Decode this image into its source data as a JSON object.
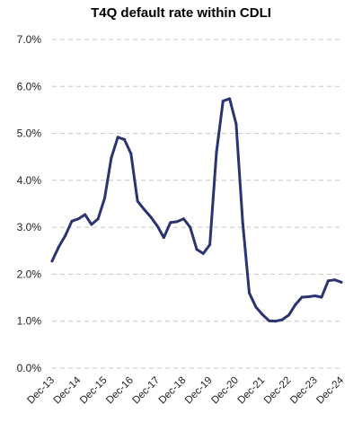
{
  "chart_data": {
    "type": "line",
    "title": "T4Q default rate within CDLI",
    "xlabel": "",
    "ylabel": "",
    "ylim": [
      0,
      7
    ],
    "y_ticks": [
      "0.0%",
      "1.0%",
      "2.0%",
      "3.0%",
      "4.0%",
      "5.0%",
      "6.0%",
      "7.0%"
    ],
    "x_tick_labels": [
      "Dec-13",
      "Dec-14",
      "Dec-15",
      "Dec-16",
      "Dec-17",
      "Dec-18",
      "Dec-19",
      "Dec-20",
      "Dec-21",
      "Dec-22",
      "Dec-23",
      "Dec-24"
    ],
    "grid": "horizontal-dashed",
    "legend": "none",
    "series": [
      {
        "color": "#2b3470",
        "x": [
          "Dec-13",
          "Mar-14",
          "Jun-14",
          "Sep-14",
          "Dec-14",
          "Mar-15",
          "Jun-15",
          "Sep-15",
          "Dec-15",
          "Mar-16",
          "Jun-16",
          "Sep-16",
          "Dec-16",
          "Mar-17",
          "Jun-17",
          "Sep-17",
          "Dec-17",
          "Mar-18",
          "Jun-18",
          "Sep-18",
          "Dec-18",
          "Mar-19",
          "Jun-19",
          "Sep-19",
          "Dec-19",
          "Mar-20",
          "Jun-20",
          "Sep-20",
          "Dec-20",
          "Mar-21",
          "Jun-21",
          "Sep-21",
          "Dec-21",
          "Mar-22",
          "Jun-22",
          "Sep-22",
          "Dec-22",
          "Mar-23",
          "Jun-23",
          "Sep-23",
          "Dec-23",
          "Mar-24",
          "Jun-24",
          "Sep-24",
          "Dec-24"
        ],
        "values": [
          2.28,
          2.58,
          2.82,
          3.13,
          3.18,
          3.27,
          3.06,
          3.18,
          3.62,
          4.48,
          4.92,
          4.87,
          4.57,
          3.56,
          3.38,
          3.22,
          3.03,
          2.78,
          3.1,
          3.12,
          3.18,
          3.0,
          2.53,
          2.44,
          2.63,
          4.6,
          5.69,
          5.74,
          5.2,
          3.1,
          1.6,
          1.3,
          1.14,
          1.01,
          1.0,
          1.03,
          1.13,
          1.35,
          1.51,
          1.52,
          1.54,
          1.51,
          1.86,
          1.88,
          1.83
        ]
      }
    ]
  },
  "colors": {
    "line": "#2b3470",
    "grid": "#c8c8c8",
    "text": "#222222",
    "background": "#ffffff"
  }
}
